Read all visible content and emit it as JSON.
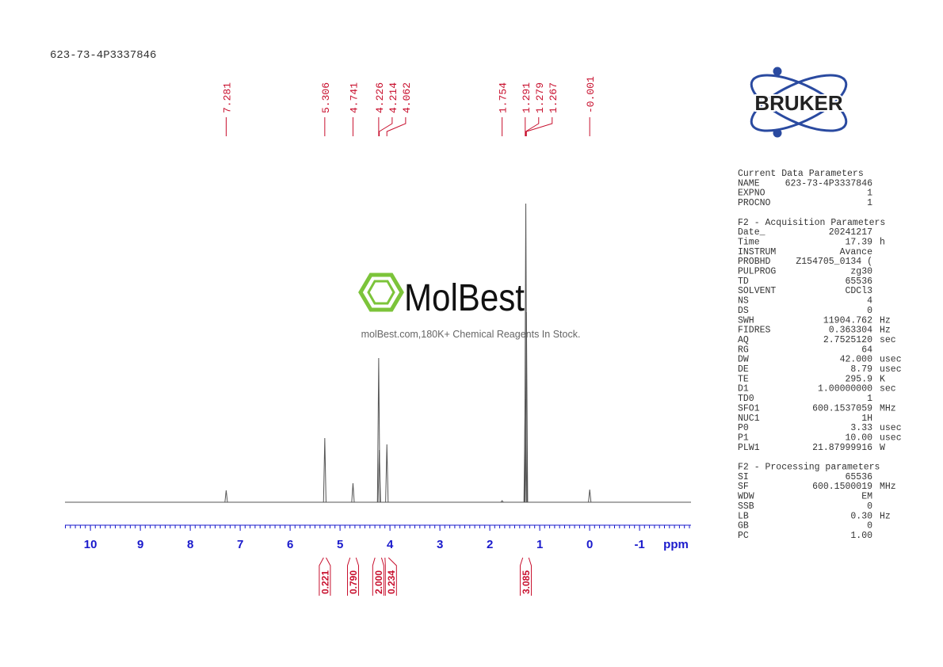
{
  "header": {
    "sample_id": "623-73-4P3337846"
  },
  "chart_data": {
    "type": "nmr",
    "x_label": "ppm",
    "xlim": [
      10.51,
      -2.03
    ],
    "xticks": [
      10,
      9,
      8,
      7,
      6,
      5,
      4,
      3,
      2,
      1,
      0,
      -1
    ],
    "ylim": [
      0,
      400
    ],
    "color": "#555555",
    "peaks": {
      "x": [
        7.281,
        5.306,
        4.741,
        4.226,
        4.214,
        4.062,
        1.754,
        1.291,
        1.279,
        1.267,
        -0.001
      ],
      "values": [
        15,
        81,
        24,
        182,
        66,
        73,
        2,
        130,
        377,
        240,
        16
      ]
    },
    "integrals": {
      "ranges": [
        [
          5.33,
          5.28
        ],
        [
          4.8,
          4.68
        ],
        [
          4.3,
          4.17
        ],
        [
          4.1,
          4.03
        ],
        [
          1.34,
          1.22
        ]
      ],
      "values": [
        0.221,
        0.79,
        {
          "value": 2,
          "label": "2.000"
        },
        0.234,
        3.085
      ],
      "value_labels": [
        "0.221",
        "0.790",
        "2.000",
        "0.234",
        "3.085"
      ]
    }
  },
  "logo": {
    "brand": "BRUKER"
  },
  "watermark": {
    "name": "MolBest",
    "tagline": "molBest.com,180K+ Chemical Reagents In Stock."
  },
  "parameters": [
    {
      "title": "Current Data Parameters",
      "rows": [
        [
          "NAME",
          "623-73-4P3337846"
        ],
        [
          "EXPNO",
          "1"
        ],
        [
          "PROCNO",
          "1"
        ]
      ]
    },
    {
      "title": "F2 - Acquisition Parameters",
      "rows": [
        [
          "Date_",
          "20241217"
        ],
        [
          "Time",
          "17.39",
          "h"
        ],
        [
          "INSTRUM",
          "Avance"
        ],
        [
          "PROBHD",
          "Z154705_0134 ("
        ],
        [
          "PULPROG",
          "zg30"
        ],
        [
          "TD",
          "65536"
        ],
        [
          "SOLVENT",
          "CDCl3"
        ],
        [
          "NS",
          "4"
        ],
        [
          "DS",
          "0"
        ],
        [
          "SWH",
          "11904.762",
          "Hz"
        ],
        [
          "FIDRES",
          "0.363304",
          "Hz"
        ],
        [
          "AQ",
          "2.7525120",
          "sec"
        ],
        [
          "RG",
          "64"
        ],
        [
          "DW",
          "42.000",
          "usec"
        ],
        [
          "DE",
          "8.79",
          "usec"
        ],
        [
          "TE",
          "295.9",
          "K"
        ],
        [
          "D1",
          "1.00000000",
          "sec"
        ],
        [
          "TD0",
          "1"
        ],
        [
          "SFO1",
          "600.1537059",
          "MHz"
        ],
        [
          "NUC1",
          "1H"
        ],
        [
          "P0",
          "3.33",
          "usec"
        ],
        [
          "P1",
          "10.00",
          "usec"
        ],
        [
          "PLW1",
          "21.87999916",
          "W"
        ]
      ]
    },
    {
      "title": "F2 - Processing parameters",
      "rows": [
        [
          "SI",
          "65536"
        ],
        [
          "SF",
          "600.1500019",
          "MHz"
        ],
        [
          "WDW",
          "EM"
        ],
        [
          "SSB",
          "0"
        ],
        [
          "LB",
          "0.30",
          "Hz"
        ],
        [
          "GB",
          "0"
        ],
        [
          "PC",
          "1.00"
        ]
      ]
    }
  ]
}
